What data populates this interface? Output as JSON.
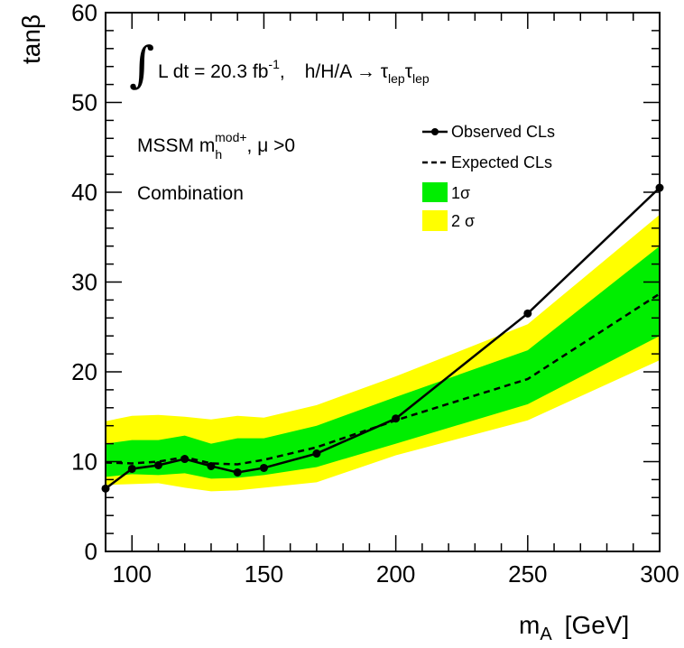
{
  "chart_data": {
    "type": "line",
    "xlabel": "m",
    "xlabel_sub": "A",
    "xlabel_unit": "[GeV]",
    "ylabel": "tanβ",
    "xlim": [
      90,
      300
    ],
    "ylim": [
      0,
      60
    ],
    "x_ticks": [
      "100",
      "150",
      "200",
      "250",
      "300"
    ],
    "y_ticks": [
      "0",
      "10",
      "20",
      "30",
      "40",
      "50",
      "60"
    ],
    "lumi": {
      "integral_sign": "∫",
      "text": "L dt = 20.3 fb",
      "exponent": "-1",
      "comma": ",",
      "process": "h/H/A → τ",
      "tau_sub": "lep",
      "tau2": "τ",
      "tau2_sub": "lep"
    },
    "model": {
      "prefix": "MSSM m",
      "sub": "h",
      "sup": "mod+",
      "suffix": ", μ >0"
    },
    "combination_label": "Combination",
    "legend": [
      {
        "label": "Observed CLs",
        "style": "line-marker",
        "color": "#000000"
      },
      {
        "label": "Expected CLs",
        "style": "dashed",
        "color": "#000000"
      },
      {
        "label": "1σ",
        "style": "box",
        "color": "#00ee00"
      },
      {
        "label": "2 σ",
        "style": "box",
        "color": "#ffff00"
      }
    ],
    "legend_position": "top-right",
    "colors": {
      "band_1sigma": "#00ee00",
      "band_2sigma": "#ffff00",
      "line": "#000000"
    },
    "series": [
      {
        "name": "Observed CLs",
        "x": [
          90,
          100,
          110,
          120,
          130,
          140,
          150,
          170,
          200,
          250,
          300
        ],
        "y": [
          7.0,
          9.2,
          9.6,
          10.3,
          9.5,
          8.8,
          9.3,
          10.9,
          14.8,
          26.5,
          40.5
        ]
      },
      {
        "name": "Expected CLs",
        "x": [
          90,
          100,
          110,
          120,
          130,
          140,
          150,
          170,
          200,
          250,
          300
        ],
        "y": [
          9.9,
          9.8,
          10.0,
          10.5,
          9.8,
          9.7,
          10.2,
          11.6,
          14.6,
          19.2,
          28.7
        ]
      },
      {
        "name": "1σ",
        "x": [
          90,
          100,
          110,
          120,
          130,
          140,
          150,
          170,
          200,
          250,
          300
        ],
        "low": [
          8.3,
          8.6,
          8.5,
          8.7,
          8.1,
          8.2,
          8.5,
          9.4,
          12.0,
          16.4,
          24.0
        ],
        "high": [
          12.0,
          12.4,
          12.4,
          12.9,
          12.0,
          12.6,
          12.6,
          14.0,
          17.2,
          22.4,
          34.0
        ]
      },
      {
        "name": "2 σ",
        "x": [
          90,
          100,
          110,
          120,
          130,
          140,
          150,
          170,
          200,
          250,
          300
        ],
        "low": [
          7.4,
          7.5,
          7.6,
          7.1,
          6.7,
          6.8,
          7.1,
          7.7,
          10.7,
          14.6,
          21.3
        ],
        "high": [
          14.5,
          15.1,
          15.2,
          15.0,
          14.7,
          15.1,
          14.9,
          16.3,
          19.5,
          25.3,
          37.5
        ]
      }
    ]
  }
}
